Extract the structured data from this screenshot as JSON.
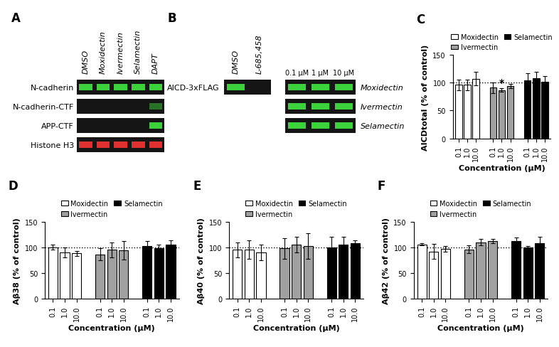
{
  "blots": [
    {
      "panel": "A",
      "lanes": [
        "DMSO",
        "Moxidectin",
        "Ivermectin",
        "Selamectin",
        "DAPT"
      ],
      "rows": [
        {
          "label": "N-cadherin",
          "color": "#3cd23c",
          "bands": [
            1,
            1,
            1,
            1,
            1
          ]
        },
        {
          "label": "N-cadherin-CTF",
          "color": "#3cd23c",
          "bands": [
            0,
            0,
            0,
            0,
            0.5
          ]
        },
        {
          "label": "APP-CTF",
          "color": "#3cd23c",
          "bands": [
            0,
            0,
            0,
            0,
            1
          ]
        },
        {
          "label": "Histone H3",
          "color": "#e03030",
          "bands": [
            1,
            1,
            1,
            1,
            1
          ]
        }
      ]
    },
    {
      "panel": "B",
      "lanes": [
        "DMSO",
        "L-685,458"
      ],
      "rows": [
        {
          "label": "AICD-3xFLAG",
          "color": "#3cd23c",
          "bands": [
            1,
            0
          ]
        }
      ],
      "dose_lanes": [
        "0.1 μM",
        "1 μM",
        "10 μM"
      ],
      "dose_rows": [
        {
          "label": "Moxidectin",
          "color": "#3cd23c",
          "bands": [
            1,
            1,
            1
          ]
        },
        {
          "label": "Ivermectin",
          "color": "#3cd23c",
          "bands": [
            1,
            1,
            1
          ]
        },
        {
          "label": "Selamectin",
          "color": "#3cd23c",
          "bands": [
            1,
            1,
            1
          ]
        }
      ]
    }
  ],
  "chart_data": [
    {
      "panel": "C",
      "type": "bar",
      "categories": [
        "0.1",
        "1.0",
        "10.0"
      ],
      "xlabel": "Concentration (μM)",
      "ylabel": "AICDtotal (% of control)",
      "ylim": [
        0,
        150
      ],
      "yticks": [
        0,
        50,
        100,
        150
      ],
      "reference_line": 100,
      "legend": "top",
      "series": [
        {
          "name": "Moxidectin",
          "color": "#ffffff",
          "values": [
            96,
            96,
            107
          ],
          "error": [
            10,
            10,
            12
          ]
        },
        {
          "name": "Ivermectin",
          "color": "#a0a0a0",
          "values": [
            91,
            87,
            94
          ],
          "error": [
            10,
            3,
            4
          ]
        },
        {
          "name": "Selamectin",
          "color": "#000000",
          "values": [
            104,
            108,
            102
          ],
          "error": [
            13,
            12,
            10
          ]
        }
      ],
      "annotations": [
        {
          "text": "*",
          "series": "Ivermectin",
          "category": "1.0"
        }
      ]
    },
    {
      "panel": "D",
      "type": "bar",
      "categories": [
        "0.1",
        "1.0",
        "10.0"
      ],
      "xlabel": "Concentration (μM)",
      "ylabel": "Aβ38 (% of control)",
      "ylim": [
        0,
        150
      ],
      "yticks": [
        0,
        50,
        100,
        150
      ],
      "reference_line": 100,
      "legend": "top",
      "series": [
        {
          "name": "Moxidectin",
          "color": "#ffffff",
          "values": [
            100,
            90,
            88
          ],
          "error": [
            5,
            10,
            5
          ]
        },
        {
          "name": "Ivermectin",
          "color": "#a0a0a0",
          "values": [
            86,
            95,
            94
          ],
          "error": [
            12,
            15,
            18
          ]
        },
        {
          "name": "Selamectin",
          "color": "#000000",
          "values": [
            102,
            98,
            106
          ],
          "error": [
            10,
            8,
            8
          ]
        }
      ]
    },
    {
      "panel": "E",
      "type": "bar",
      "categories": [
        "0.1",
        "1.0",
        "10.0"
      ],
      "xlabel": "Concentration (μM)",
      "ylabel": "Aβ40 (% of control)",
      "ylim": [
        0,
        150
      ],
      "yticks": [
        0,
        50,
        100,
        150
      ],
      "reference_line": 100,
      "legend": "top",
      "series": [
        {
          "name": "Moxidectin",
          "color": "#ffffff",
          "values": [
            95,
            95,
            90
          ],
          "error": [
            15,
            18,
            15
          ]
        },
        {
          "name": "Ivermectin",
          "color": "#a0a0a0",
          "values": [
            98,
            105,
            102
          ],
          "error": [
            20,
            15,
            25
          ]
        },
        {
          "name": "Selamectin",
          "color": "#000000",
          "values": [
            100,
            105,
            108
          ],
          "error": [
            20,
            15,
            6
          ]
        }
      ]
    },
    {
      "panel": "F",
      "type": "bar",
      "categories": [
        "0.1",
        "1.0",
        "10.0"
      ],
      "xlabel": "Concentration (μM)",
      "ylabel": "Aβ42 (% of control)",
      "ylim": [
        0,
        150
      ],
      "yticks": [
        0,
        50,
        100,
        150
      ],
      "reference_line": 100,
      "legend": "top",
      "series": [
        {
          "name": "Moxidectin",
          "color": "#ffffff",
          "values": [
            106,
            92,
            97
          ],
          "error": [
            2,
            15,
            5
          ]
        },
        {
          "name": "Ivermectin",
          "color": "#a0a0a0",
          "values": [
            96,
            110,
            112
          ],
          "error": [
            8,
            6,
            4
          ]
        },
        {
          "name": "Selamectin",
          "color": "#000000",
          "values": [
            112,
            100,
            108
          ],
          "error": [
            7,
            2,
            12
          ]
        }
      ]
    }
  ]
}
